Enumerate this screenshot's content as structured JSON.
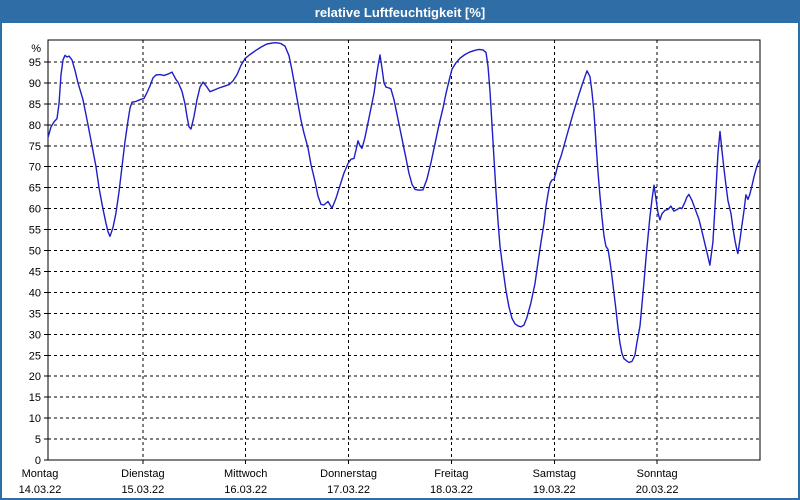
{
  "window": {
    "title": "relative Luftfeuchtigkeit [%]"
  },
  "colors": {
    "titlebar": "#2e6da6",
    "window_border": "#2e6da6",
    "background": "#ffffff",
    "plot_frame": "#000000",
    "grid": "#000000",
    "line": "#1e1ec8",
    "text": "#000000"
  },
  "chart_data": {
    "type": "line",
    "title": "relative Luftfeuchtigkeit [%]",
    "ylabel": "%",
    "xlabel": "",
    "ylim": [
      0,
      100.2
    ],
    "y_ticks": [
      0,
      5,
      10,
      15,
      20,
      25,
      30,
      35,
      40,
      45,
      50,
      55,
      60,
      65,
      70,
      75,
      80,
      85,
      90,
      95
    ],
    "x_unit": "days since Montag 14.03.22 00:00",
    "xlim": [
      0.078,
      7
    ],
    "grid": "dashed, horizontal every 5 %, vertical at each day boundary",
    "legend": "none",
    "x_ticks": [
      {
        "day": "Montag",
        "date": "14.03.22"
      },
      {
        "day": "Dienstag",
        "date": "15.03.22"
      },
      {
        "day": "Mittwoch",
        "date": "16.03.22"
      },
      {
        "day": "Donnerstag",
        "date": "17.03.22"
      },
      {
        "day": "Freitag",
        "date": "18.03.22"
      },
      {
        "day": "Samstag",
        "date": "19.03.22"
      },
      {
        "day": "Sonntag",
        "date": "20.03.22"
      }
    ],
    "series": [
      {
        "name": "relative Luftfeuchtigkeit [%]",
        "points": [
          [
            0.078,
            77
          ],
          [
            0.107,
            79.5
          ],
          [
            0.136,
            80.7
          ],
          [
            0.165,
            81.5
          ],
          [
            0.185,
            85
          ],
          [
            0.204,
            92
          ],
          [
            0.224,
            95.5
          ],
          [
            0.243,
            96.6
          ],
          [
            0.262,
            96.2
          ],
          [
            0.282,
            96.4
          ],
          [
            0.311,
            95.5
          ],
          [
            0.34,
            93
          ],
          [
            0.369,
            90
          ],
          [
            0.418,
            86
          ],
          [
            0.467,
            80
          ],
          [
            0.506,
            75
          ],
          [
            0.544,
            70
          ],
          [
            0.574,
            65
          ],
          [
            0.612,
            60
          ],
          [
            0.642,
            56.5
          ],
          [
            0.661,
            54.5
          ],
          [
            0.681,
            53.4
          ],
          [
            0.71,
            55.5
          ],
          [
            0.739,
            59
          ],
          [
            0.768,
            64
          ],
          [
            0.797,
            70
          ],
          [
            0.826,
            76
          ],
          [
            0.856,
            81
          ],
          [
            0.875,
            84
          ],
          [
            0.894,
            85.4
          ],
          [
            0.933,
            85.6
          ],
          [
            0.972,
            86
          ],
          [
            1.011,
            86.3
          ],
          [
            1.04,
            87.7
          ],
          [
            1.069,
            89.3
          ],
          [
            1.099,
            91.2
          ],
          [
            1.128,
            91.9
          ],
          [
            1.167,
            92
          ],
          [
            1.206,
            91.8
          ],
          [
            1.244,
            92.1
          ],
          [
            1.283,
            92.6
          ],
          [
            1.322,
            90.8
          ],
          [
            1.342,
            90.2
          ],
          [
            1.381,
            88
          ],
          [
            1.41,
            85
          ],
          [
            1.429,
            82
          ],
          [
            1.449,
            79.5
          ],
          [
            1.468,
            79
          ],
          [
            1.497,
            82
          ],
          [
            1.526,
            86
          ],
          [
            1.556,
            89
          ],
          [
            1.585,
            90.2
          ],
          [
            1.624,
            89
          ],
          [
            1.653,
            87.9
          ],
          [
            1.692,
            88.3
          ],
          [
            1.74,
            88.8
          ],
          [
            1.789,
            89.2
          ],
          [
            1.838,
            89.6
          ],
          [
            1.876,
            90.5
          ],
          [
            1.915,
            92
          ],
          [
            1.954,
            94.2
          ],
          [
            1.993,
            95.8
          ],
          [
            2.042,
            96.8
          ],
          [
            2.1,
            97.8
          ],
          [
            2.158,
            98.7
          ],
          [
            2.207,
            99.3
          ],
          [
            2.256,
            99.5
          ],
          [
            2.294,
            99.6
          ],
          [
            2.343,
            99.4
          ],
          [
            2.382,
            98.8
          ],
          [
            2.421,
            96.5
          ],
          [
            2.45,
            93
          ],
          [
            2.479,
            89
          ],
          [
            2.508,
            85
          ],
          [
            2.538,
            81
          ],
          [
            2.567,
            78
          ],
          [
            2.606,
            74.5
          ],
          [
            2.635,
            70.5
          ],
          [
            2.674,
            66.5
          ],
          [
            2.703,
            63
          ],
          [
            2.732,
            61
          ],
          [
            2.761,
            60.9
          ],
          [
            2.8,
            61.7
          ],
          [
            2.839,
            60.1
          ],
          [
            2.878,
            62.5
          ],
          [
            2.917,
            65.5
          ],
          [
            2.956,
            68.5
          ],
          [
            2.995,
            70.8
          ],
          [
            3.024,
            71.8
          ],
          [
            3.053,
            72
          ],
          [
            3.072,
            74
          ],
          [
            3.092,
            76.2
          ],
          [
            3.111,
            75
          ],
          [
            3.131,
            74.4
          ],
          [
            3.16,
            77
          ],
          [
            3.189,
            80.5
          ],
          [
            3.218,
            84
          ],
          [
            3.247,
            87.5
          ],
          [
            3.267,
            91
          ],
          [
            3.286,
            94
          ],
          [
            3.306,
            96.7
          ],
          [
            3.325,
            93.5
          ],
          [
            3.344,
            90
          ],
          [
            3.364,
            89
          ],
          [
            3.393,
            88.8
          ],
          [
            3.412,
            88.6
          ],
          [
            3.442,
            86
          ],
          [
            3.471,
            82.5
          ],
          [
            3.5,
            79
          ],
          [
            3.529,
            75.5
          ],
          [
            3.558,
            72
          ],
          [
            3.587,
            68.5
          ],
          [
            3.617,
            65.8
          ],
          [
            3.646,
            64.6
          ],
          [
            3.685,
            64.4
          ],
          [
            3.724,
            64.5
          ],
          [
            3.762,
            67
          ],
          [
            3.801,
            71
          ],
          [
            3.84,
            75.5
          ],
          [
            3.879,
            80
          ],
          [
            3.918,
            84
          ],
          [
            3.947,
            87.5
          ],
          [
            3.976,
            90.5
          ],
          [
            4.006,
            93.3
          ],
          [
            4.044,
            94.8
          ],
          [
            4.083,
            95.9
          ],
          [
            4.132,
            96.8
          ],
          [
            4.181,
            97.4
          ],
          [
            4.229,
            97.8
          ],
          [
            4.268,
            98
          ],
          [
            4.307,
            97.9
          ],
          [
            4.336,
            97.3
          ],
          [
            4.356,
            94
          ],
          [
            4.375,
            88
          ],
          [
            4.394,
            80
          ],
          [
            4.414,
            72
          ],
          [
            4.433,
            64
          ],
          [
            4.453,
            57
          ],
          [
            4.472,
            51
          ],
          [
            4.501,
            45.5
          ],
          [
            4.53,
            40.5
          ],
          [
            4.56,
            36.5
          ],
          [
            4.589,
            33.8
          ],
          [
            4.618,
            32.5
          ],
          [
            4.647,
            32
          ],
          [
            4.676,
            31.8
          ],
          [
            4.705,
            32.2
          ],
          [
            4.734,
            34
          ],
          [
            4.773,
            37.5
          ],
          [
            4.812,
            42
          ],
          [
            4.841,
            47
          ],
          [
            4.871,
            52
          ],
          [
            4.9,
            56.5
          ],
          [
            4.919,
            60.5
          ],
          [
            4.939,
            63.5
          ],
          [
            4.958,
            66
          ],
          [
            4.977,
            66.8
          ],
          [
            4.997,
            67
          ],
          [
            5.016,
            68.5
          ],
          [
            5.036,
            70.5
          ],
          [
            5.065,
            72.5
          ],
          [
            5.094,
            75
          ],
          [
            5.123,
            77.5
          ],
          [
            5.152,
            80
          ],
          [
            5.181,
            82.5
          ],
          [
            5.211,
            85
          ],
          [
            5.24,
            87.3
          ],
          [
            5.269,
            89.5
          ],
          [
            5.298,
            91.5
          ],
          [
            5.318,
            92.9
          ],
          [
            5.347,
            91.5
          ],
          [
            5.366,
            88
          ],
          [
            5.386,
            83
          ],
          [
            5.405,
            76
          ],
          [
            5.424,
            69
          ],
          [
            5.444,
            63
          ],
          [
            5.463,
            58
          ],
          [
            5.483,
            53.5
          ],
          [
            5.502,
            51
          ],
          [
            5.522,
            50.3
          ],
          [
            5.541,
            47.5
          ],
          [
            5.56,
            44
          ],
          [
            5.58,
            40
          ],
          [
            5.599,
            36
          ],
          [
            5.619,
            31.5
          ],
          [
            5.638,
            28
          ],
          [
            5.657,
            25.5
          ],
          [
            5.677,
            24.2
          ],
          [
            5.706,
            23.6
          ],
          [
            5.725,
            23.3
          ],
          [
            5.755,
            23.5
          ],
          [
            5.784,
            25
          ],
          [
            5.803,
            28
          ],
          [
            5.833,
            32
          ],
          [
            5.852,
            37
          ],
          [
            5.872,
            42.5
          ],
          [
            5.891,
            48
          ],
          [
            5.91,
            53
          ],
          [
            5.93,
            58
          ],
          [
            5.949,
            62
          ],
          [
            5.969,
            65.6
          ],
          [
            5.988,
            62.5
          ],
          [
            6.008,
            59
          ],
          [
            6.027,
            57.3
          ],
          [
            6.047,
            58.8
          ],
          [
            6.076,
            59.6
          ],
          [
            6.105,
            59.8
          ],
          [
            6.134,
            60.6
          ],
          [
            6.163,
            59.4
          ],
          [
            6.192,
            59.8
          ],
          [
            6.222,
            60.2
          ],
          [
            6.241,
            60
          ],
          [
            6.27,
            61.5
          ],
          [
            6.29,
            62.8
          ],
          [
            6.309,
            63.4
          ],
          [
            6.338,
            62
          ],
          [
            6.368,
            60
          ],
          [
            6.406,
            57.5
          ],
          [
            6.436,
            54.5
          ],
          [
            6.465,
            51.5
          ],
          [
            6.494,
            48.5
          ],
          [
            6.513,
            46.5
          ],
          [
            6.542,
            52
          ],
          [
            6.562,
            60
          ],
          [
            6.591,
            73
          ],
          [
            6.611,
            78.4
          ],
          [
            6.63,
            74
          ],
          [
            6.65,
            69.5
          ],
          [
            6.669,
            65.5
          ],
          [
            6.688,
            62
          ],
          [
            6.718,
            58.8
          ],
          [
            6.737,
            55.5
          ],
          [
            6.756,
            52.5
          ],
          [
            6.776,
            50
          ],
          [
            6.785,
            49.3
          ],
          [
            6.805,
            52.5
          ],
          [
            6.824,
            56
          ],
          [
            6.844,
            59.5
          ],
          [
            6.863,
            63.3
          ],
          [
            6.883,
            62.2
          ],
          [
            6.902,
            63.5
          ],
          [
            6.922,
            65.5
          ],
          [
            6.941,
            67.5
          ],
          [
            6.96,
            69.3
          ],
          [
            6.98,
            70.8
          ],
          [
            7,
            71.8
          ]
        ]
      }
    ]
  }
}
